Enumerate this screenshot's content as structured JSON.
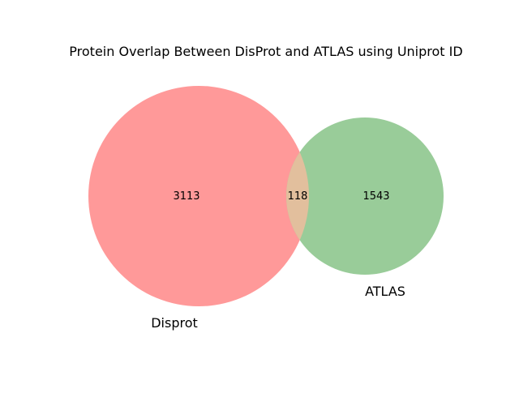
{
  "chart_data": {
    "type": "venn",
    "title": "Protein Overlap Between DisProt and ATLAS using Uniprot ID",
    "sets": [
      {
        "name": "Disprot",
        "only_count": "3113",
        "color": "#ff9999"
      },
      {
        "name": "ATLAS",
        "only_count": "1543",
        "color": "#99cc99"
      }
    ],
    "intersection": {
      "count": "118",
      "color": "#e2bf9d"
    }
  }
}
